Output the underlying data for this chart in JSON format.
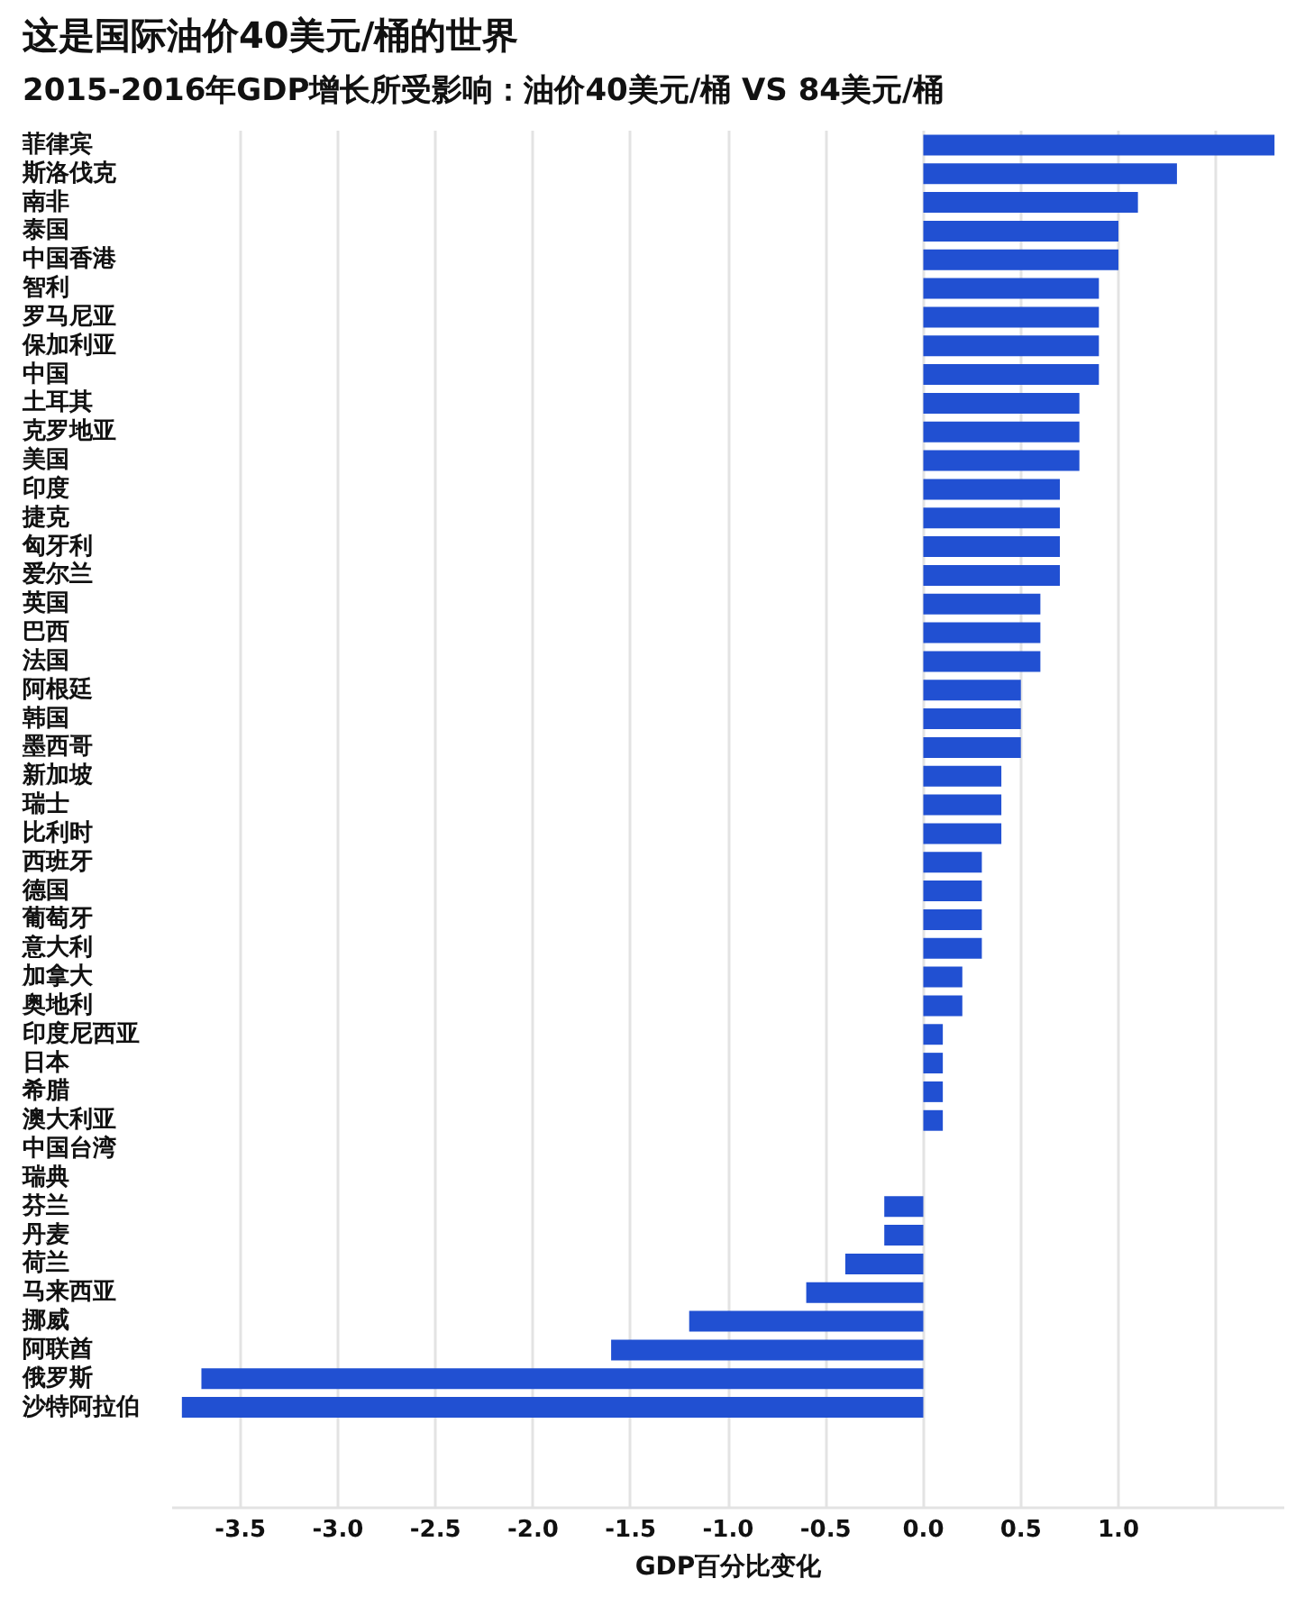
{
  "chart_data": {
    "type": "bar",
    "orientation": "horizontal",
    "title": "这是国际油价40美元/桶的世界",
    "subtitle": "2015-2016年GDP增长所受影响：油价40美元/桶 VS 84美元/桶",
    "xlabel": "GDP百分比变化",
    "categories": [
      "菲律宾",
      "斯洛伐克",
      "南非",
      "泰国",
      "中国香港",
      "智利",
      "罗马尼亚",
      "保加利亚",
      "中国",
      "土耳其",
      "克罗地亚",
      "美国",
      "印度",
      "捷克",
      "匈牙利",
      "爱尔兰",
      "英国",
      "巴西",
      "法国",
      "阿根廷",
      "韩国",
      "墨西哥",
      "新加坡",
      "瑞士",
      "比利时",
      "西班牙",
      "德国",
      "葡萄牙",
      "意大利",
      "加拿大",
      "奥地利",
      "印度尼西亚",
      "日本",
      "希腊",
      "澳大利亚",
      "中国台湾",
      "瑞典",
      "芬兰",
      "丹麦",
      "荷兰",
      "马来西亚",
      "挪威",
      "阿联酋",
      "俄罗斯",
      "沙特阿拉伯"
    ],
    "values": [
      1.8,
      1.3,
      1.1,
      1.0,
      1.0,
      0.9,
      0.9,
      0.9,
      0.9,
      0.8,
      0.8,
      0.8,
      0.7,
      0.7,
      0.7,
      0.7,
      0.6,
      0.6,
      0.6,
      0.5,
      0.5,
      0.5,
      0.4,
      0.4,
      0.4,
      0.3,
      0.3,
      0.3,
      0.3,
      0.2,
      0.2,
      0.1,
      0.1,
      0.1,
      0.1,
      0,
      0,
      -0.2,
      -0.2,
      -0.4,
      -0.6,
      -1.2,
      -1.6,
      -3.7,
      -3.8
    ],
    "color": "#2150d2",
    "xlim": [
      -3.85,
      1.85
    ],
    "xticks": [
      -3.5,
      {
        "value": -3,
        "label": "-3.0"
      },
      -2.5,
      {
        "value": -2,
        "label": "-2.0"
      },
      -1.5,
      {
        "value": -1,
        "label": "-1.0"
      },
      -0.5,
      {
        "value": 0,
        "label": "0.0"
      },
      0.5,
      {
        "value": 1,
        "label": "1.0"
      },
      {
        "value": 1.5,
        "label": null
      }
    ],
    "grid": "x"
  }
}
